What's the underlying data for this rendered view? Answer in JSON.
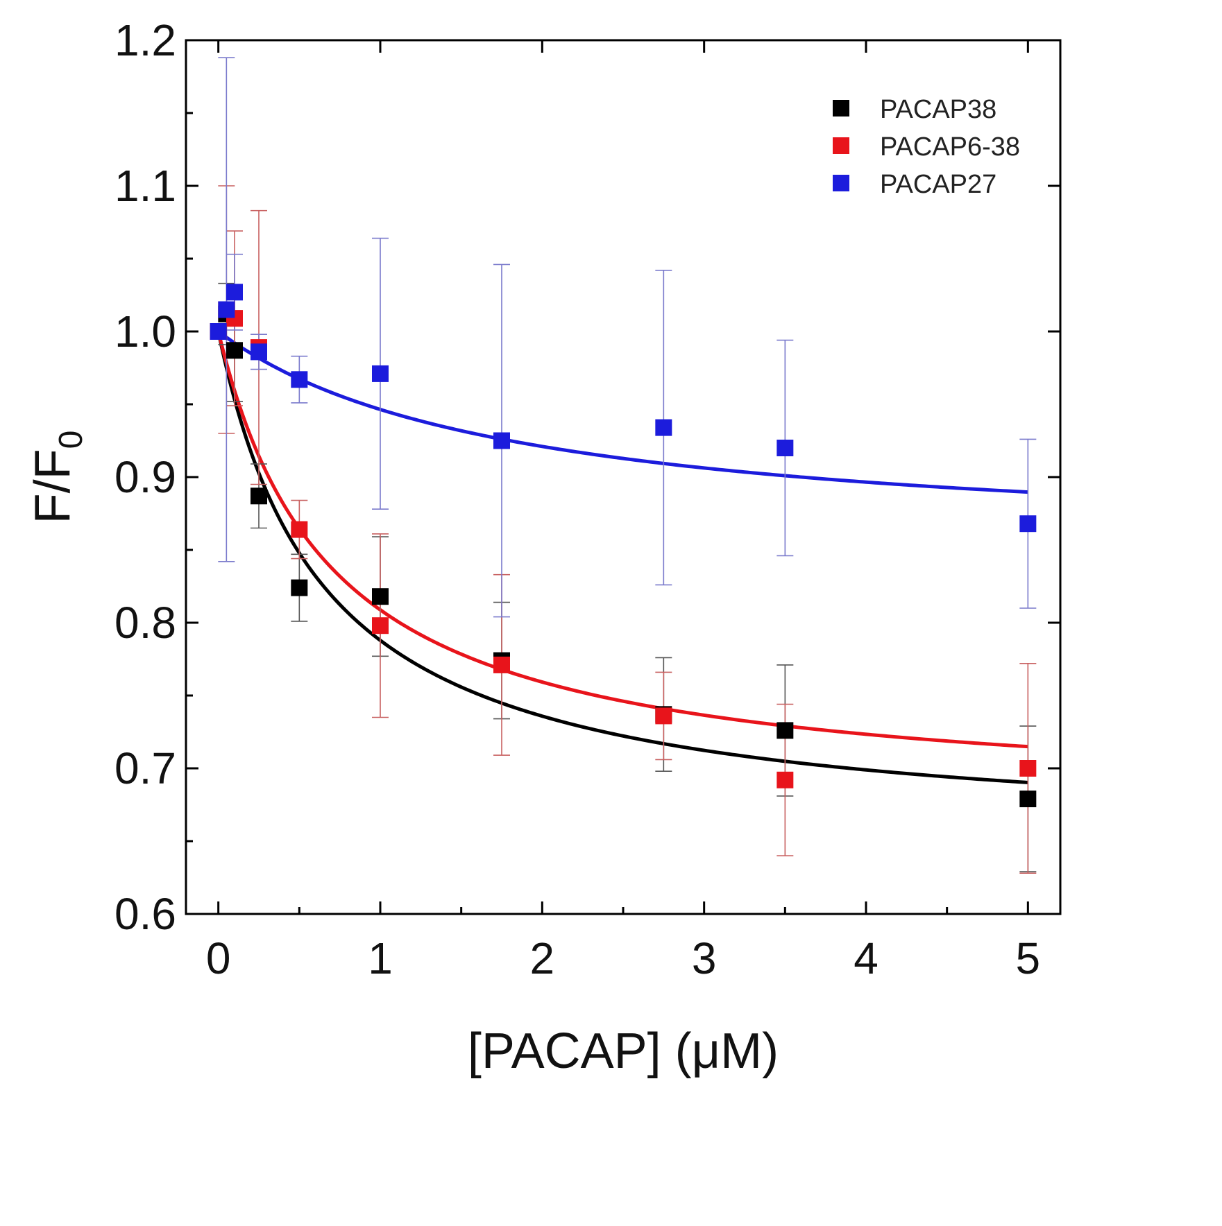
{
  "chart_data": {
    "type": "scatter",
    "title": "",
    "xlabel": "[PACAP] (μM)",
    "ylabel_main": "F/F",
    "ylabel_subscript": "0",
    "xlim": [
      -0.2,
      5.2
    ],
    "ylim": [
      0.6,
      1.2
    ],
    "x_ticks": [
      0,
      1,
      2,
      3,
      4,
      5
    ],
    "x_tick_labels": [
      "0",
      "1",
      "2",
      "3",
      "4",
      "5"
    ],
    "x_minor_ticks": [
      0.5,
      1.5,
      2.5,
      3.5,
      4.5
    ],
    "y_ticks": [
      0.6,
      0.7,
      0.8,
      0.9,
      1.0,
      1.1,
      1.2
    ],
    "y_tick_labels": [
      "0.6",
      "0.7",
      "0.8",
      "0.9",
      "1.0",
      "1.1",
      "1.2"
    ],
    "y_minor_ticks": [
      0.65,
      0.75,
      0.85,
      0.95,
      1.05,
      1.15
    ],
    "grid": false,
    "legend_position": "top-right",
    "series": [
      {
        "name": "PACAP38",
        "color": "#000000",
        "errorbar_color": "#555555",
        "x": [
          0,
          0.05,
          0.1,
          0.25,
          0.5,
          1.0,
          1.75,
          2.75,
          3.5,
          5.0
        ],
        "y": [
          1.0,
          1.012,
          0.987,
          0.887,
          0.824,
          0.818,
          0.774,
          0.737,
          0.726,
          0.679
        ],
        "err": [
          0.0,
          0.021,
          0.035,
          0.022,
          0.023,
          0.041,
          0.04,
          0.039,
          0.045,
          0.05
        ],
        "fit": {
          "a": 0.35,
          "k": 0.65
        }
      },
      {
        "name": "PACAP6-38",
        "color": "#e8141b",
        "errorbar_color": "#c86060",
        "x": [
          0,
          0.05,
          0.1,
          0.25,
          0.5,
          1.0,
          1.75,
          2.75,
          3.5,
          5.0
        ],
        "y": [
          1.0,
          1.015,
          1.009,
          0.989,
          0.864,
          0.798,
          0.771,
          0.736,
          0.692,
          0.7
        ],
        "err": [
          0.0,
          0.085,
          0.06,
          0.094,
          0.02,
          0.063,
          0.062,
          0.03,
          0.052,
          0.072
        ],
        "fit": {
          "a": 0.325,
          "k": 0.7
        }
      },
      {
        "name": "PACAP27",
        "color": "#1c1cdc",
        "errorbar_color": "#7a7acc",
        "x": [
          0,
          0.05,
          0.1,
          0.25,
          0.5,
          1.0,
          1.75,
          2.75,
          3.5,
          5.0
        ],
        "y": [
          1.0,
          1.015,
          1.027,
          0.986,
          0.967,
          0.971,
          0.925,
          0.934,
          0.92,
          0.868
        ],
        "err": [
          0.0,
          0.173,
          0.026,
          0.012,
          0.016,
          0.093,
          0.121,
          0.108,
          0.074,
          0.058
        ],
        "fit": {
          "a": 0.15,
          "k": 1.8
        }
      }
    ]
  }
}
